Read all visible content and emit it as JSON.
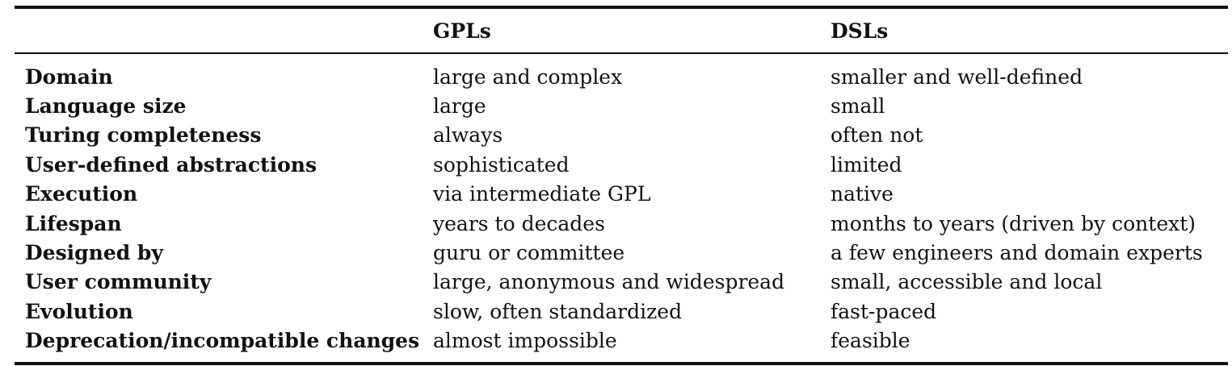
{
  "table": {
    "headers": [
      "",
      "GPLs",
      "DSLs"
    ],
    "rows": [
      {
        "label": "Domain",
        "gpl": "large and complex",
        "dsl": "smaller and well-defined"
      },
      {
        "label": "Language size",
        "gpl": "large",
        "dsl": "small"
      },
      {
        "label": "Turing completeness",
        "gpl": "always",
        "dsl": "often not"
      },
      {
        "label": "User-defined abstractions",
        "gpl": "sophisticated",
        "dsl": "limited"
      },
      {
        "label": "Execution",
        "gpl": "via intermediate GPL",
        "dsl": "native"
      },
      {
        "label": "Lifespan",
        "gpl": "years to decades",
        "dsl": "months to years (driven by context)"
      },
      {
        "label": "Designed by",
        "gpl": "guru or committee",
        "dsl": "a few engineers and domain experts"
      },
      {
        "label": "User community",
        "gpl": "large, anonymous and widespread",
        "dsl": "small, accessible and local"
      },
      {
        "label": "Evolution",
        "gpl": "slow, often standardized",
        "dsl": "fast-paced"
      },
      {
        "label": "Deprecation/incompatible changes",
        "gpl": "almost impossible",
        "dsl": "feasible"
      }
    ]
  }
}
